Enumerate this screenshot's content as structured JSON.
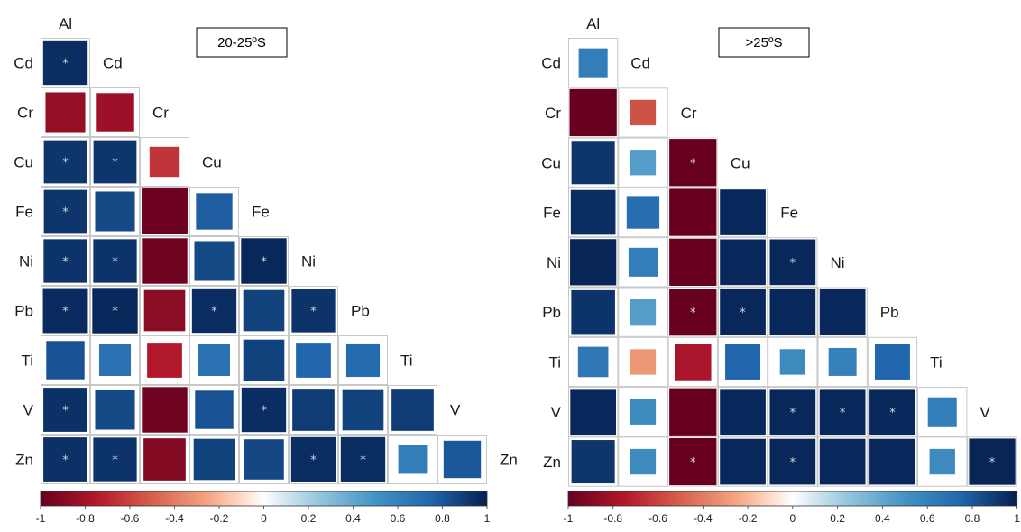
{
  "chart_data": [
    {
      "type": "heatmap",
      "title": "20-25ºS",
      "variables": [
        "Al",
        "Cd",
        "Cr",
        "Cu",
        "Fe",
        "Ni",
        "Pb",
        "Ti",
        "V",
        "Zn"
      ],
      "rows": [
        "Cd",
        "Cr",
        "Cu",
        "Fe",
        "Ni",
        "Pb",
        "Ti",
        "V",
        "Zn"
      ],
      "cols": [
        "Al",
        "Cd",
        "Cr",
        "Cu",
        "Fe",
        "Ni",
        "Pb",
        "Ti",
        "V"
      ],
      "values": [
        [
          0.95
        ],
        [
          -0.85,
          -0.82
        ],
        [
          0.92,
          0.92,
          -0.65
        ],
        [
          0.92,
          0.85,
          -0.98,
          0.78
        ],
        [
          0.93,
          0.93,
          -0.97,
          0.85,
          0.97
        ],
        [
          0.96,
          0.97,
          -0.88,
          0.95,
          0.88,
          0.93
        ],
        [
          0.82,
          0.68,
          -0.75,
          0.68,
          0.88,
          0.75,
          0.72
        ],
        [
          0.94,
          0.85,
          -0.97,
          0.82,
          0.95,
          0.9,
          0.88,
          0.9
        ],
        [
          0.94,
          0.93,
          -0.9,
          0.88,
          0.86,
          0.95,
          0.95,
          0.62,
          0.8
        ]
      ],
      "significant": [
        [
          true
        ],
        [
          false,
          false
        ],
        [
          true,
          true,
          false
        ],
        [
          true,
          false,
          false,
          false
        ],
        [
          true,
          true,
          false,
          false,
          true
        ],
        [
          true,
          true,
          false,
          true,
          false,
          true
        ],
        [
          false,
          false,
          false,
          false,
          false,
          false,
          false
        ],
        [
          true,
          false,
          false,
          false,
          true,
          false,
          false,
          false
        ],
        [
          true,
          true,
          false,
          false,
          false,
          true,
          true,
          false,
          false
        ]
      ],
      "colorbar": {
        "ticks": [
          "-1",
          "-0.8",
          "-0.6",
          "-0.4",
          "-0.2",
          "0",
          "0.2",
          "0.4",
          "0.6",
          "0.8",
          "1"
        ],
        "range": [
          -1,
          1
        ]
      }
    },
    {
      "type": "heatmap",
      "title": ">25ºS",
      "variables": [
        "Al",
        "Cd",
        "Cr",
        "Cu",
        "Fe",
        "Ni",
        "Pb",
        "Ti",
        "V",
        "Zn"
      ],
      "rows": [
        "Cd",
        "Cr",
        "Cu",
        "Fe",
        "Ni",
        "Pb",
        "Ti",
        "V",
        "Zn"
      ],
      "cols": [
        "Al",
        "Cd",
        "Cr",
        "Cu",
        "Fe",
        "Ni",
        "Pb",
        "Ti",
        "V"
      ],
      "values": [
        [
          0.62
        ],
        [
          -1.0,
          -0.55
        ],
        [
          0.92,
          0.45,
          -1.0
        ],
        [
          0.95,
          0.7,
          -1.0,
          0.97
        ],
        [
          0.98,
          0.62,
          -1.0,
          0.97,
          0.97
        ],
        [
          0.93,
          0.45,
          -1.0,
          0.97,
          0.97,
          0.97
        ],
        [
          0.65,
          -0.3,
          -0.78,
          0.75,
          0.55,
          0.6,
          0.75
        ],
        [
          0.97,
          0.55,
          -1.0,
          0.97,
          0.97,
          0.97,
          0.97,
          0.62
        ],
        [
          0.92,
          0.55,
          -1.0,
          0.97,
          0.97,
          0.97,
          0.97,
          0.55,
          0.98
        ]
      ],
      "significant": [
        [
          false
        ],
        [
          false,
          false
        ],
        [
          false,
          false,
          true
        ],
        [
          false,
          false,
          false,
          false
        ],
        [
          false,
          false,
          false,
          false,
          true
        ],
        [
          false,
          false,
          true,
          true,
          false,
          false
        ],
        [
          false,
          false,
          false,
          false,
          false,
          false,
          false
        ],
        [
          false,
          false,
          false,
          false,
          true,
          true,
          true,
          false
        ],
        [
          false,
          false,
          true,
          false,
          true,
          false,
          false,
          false,
          true
        ]
      ],
      "colorbar": {
        "ticks": [
          "-1",
          "-0.8",
          "-0.6",
          "-0.4",
          "-0.2",
          "0",
          "0.2",
          "0.4",
          "0.6",
          "0.8",
          "1"
        ],
        "range": [
          -1,
          1
        ]
      }
    }
  ],
  "significance_marker": "*"
}
